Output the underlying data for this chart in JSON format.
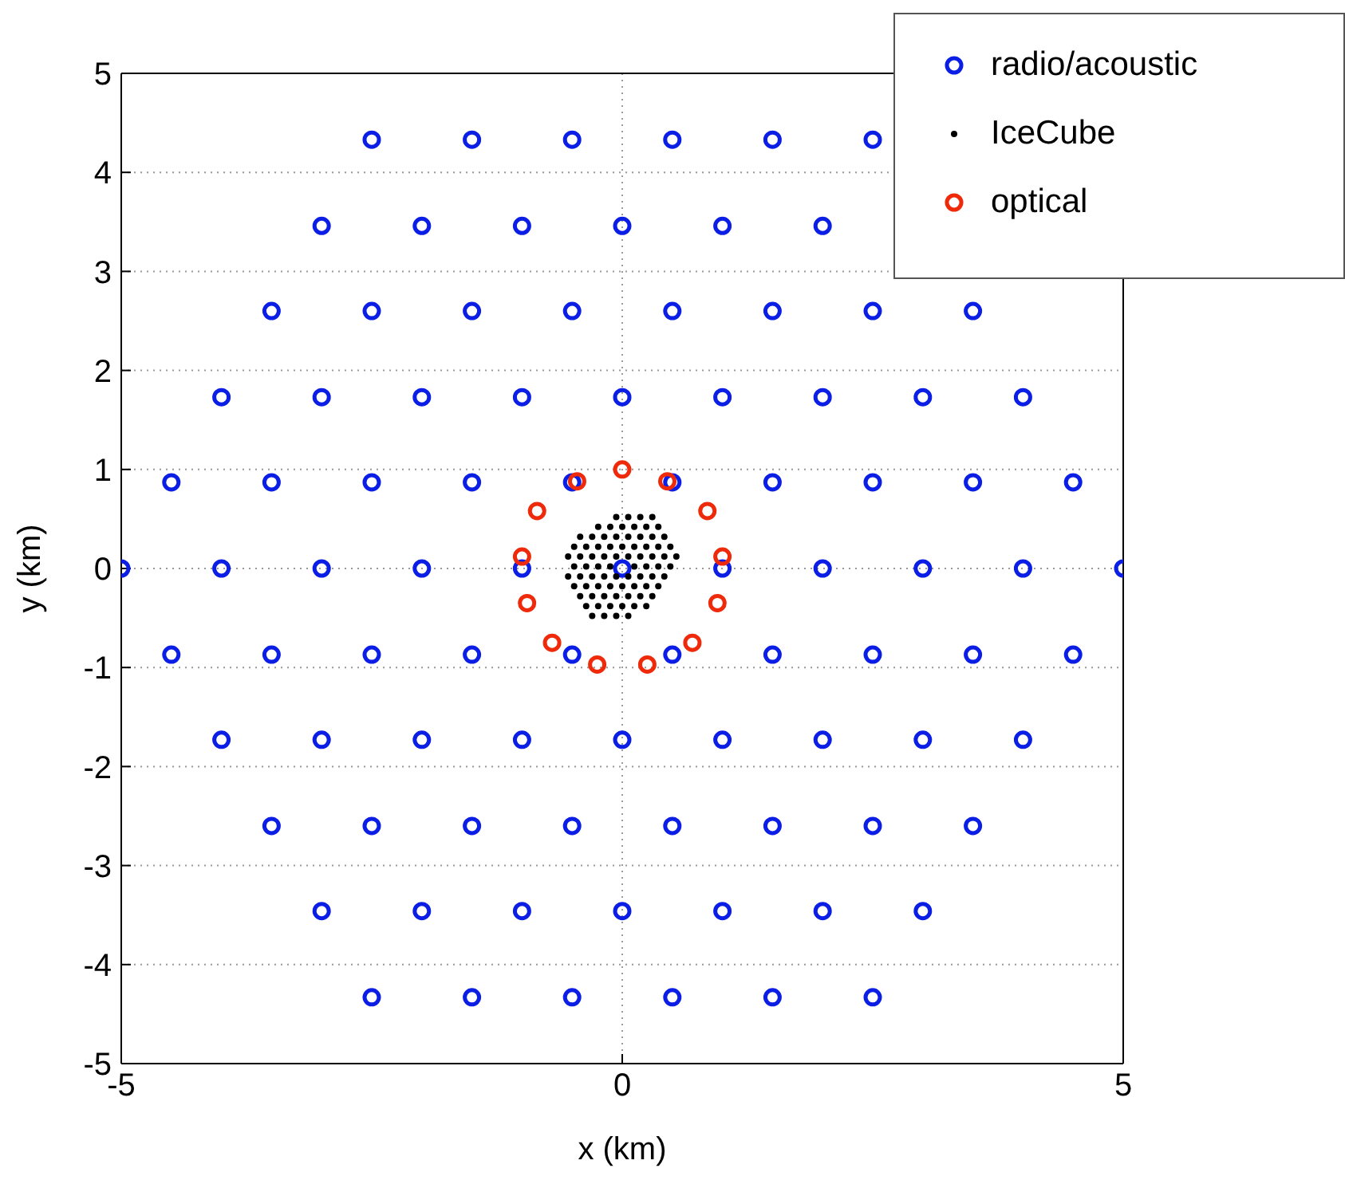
{
  "chart_data": {
    "type": "scatter",
    "xlabel": "x (km)",
    "ylabel": "y (km)",
    "xlim": [
      -5,
      5
    ],
    "ylim": [
      -5,
      5
    ],
    "xticks": [
      -5,
      0,
      5
    ],
    "yticks": [
      -5,
      -4,
      -3,
      -2,
      -1,
      0,
      1,
      2,
      3,
      4,
      5
    ],
    "grid": true,
    "legend": "top right",
    "marker": "circle",
    "series": [
      {
        "name": "radio/acoustic",
        "color": "#0a1ee6",
        "x": [
          -2.5,
          -1.5,
          -0.5,
          0.5,
          1.5,
          2.5,
          -3,
          -2,
          -1,
          0,
          1,
          2,
          -3.5,
          -2.5,
          -1.5,
          -0.5,
          0.5,
          1.5,
          2.5,
          3.5,
          -4,
          -3,
          -2,
          -1,
          0,
          1,
          2,
          3,
          4,
          -4.5,
          -3.5,
          -2.5,
          -1.5,
          -0.5,
          0.5,
          1.5,
          2.5,
          3.5,
          4.5,
          -5,
          -4,
          -3,
          -2,
          -1,
          0,
          1,
          2,
          3,
          4,
          5,
          -4.5,
          -3.5,
          -2.5,
          -1.5,
          -0.5,
          0.5,
          1.5,
          2.5,
          3.5,
          4.5,
          -4,
          -3,
          -2,
          -1,
          0,
          1,
          2,
          3,
          4,
          -3.5,
          -2.5,
          -1.5,
          -0.5,
          0.5,
          1.5,
          2.5,
          3.5,
          -3,
          -2,
          -1,
          0,
          1,
          2,
          3,
          -2.5,
          -1.5,
          -0.5,
          0.5,
          1.5,
          2.5
        ],
        "values": [
          4.33,
          4.33,
          4.33,
          4.33,
          4.33,
          4.33,
          3.46,
          3.46,
          3.46,
          3.46,
          3.46,
          3.46,
          2.6,
          2.6,
          2.6,
          2.6,
          2.6,
          2.6,
          2.6,
          2.6,
          1.73,
          1.73,
          1.73,
          1.73,
          1.73,
          1.73,
          1.73,
          1.73,
          1.73,
          0.87,
          0.87,
          0.87,
          0.87,
          0.87,
          0.87,
          0.87,
          0.87,
          0.87,
          0.87,
          0,
          0,
          0,
          0,
          0,
          0,
          0,
          0,
          0,
          0,
          0,
          -0.87,
          -0.87,
          -0.87,
          -0.87,
          -0.87,
          -0.87,
          -0.87,
          -0.87,
          -0.87,
          -0.87,
          -1.73,
          -1.73,
          -1.73,
          -1.73,
          -1.73,
          -1.73,
          -1.73,
          -1.73,
          -1.73,
          -2.6,
          -2.6,
          -2.6,
          -2.6,
          -2.6,
          -2.6,
          -2.6,
          -2.6,
          -3.46,
          -3.46,
          -3.46,
          -3.46,
          -3.46,
          -3.46,
          -3.46,
          -4.33,
          -4.33,
          -4.33,
          -4.33,
          -4.33,
          -4.33
        ]
      },
      {
        "name": "IceCube",
        "color": "#000000",
        "x": [
          -0.06,
          0.06,
          0.18,
          0.3,
          -0.24,
          -0.12,
          0,
          0.12,
          0.24,
          0.36,
          -0.42,
          -0.3,
          -0.18,
          -0.06,
          0.06,
          0.18,
          0.3,
          0.42,
          -0.48,
          -0.36,
          -0.24,
          -0.12,
          0,
          0.12,
          0.24,
          0.36,
          0.48,
          -0.54,
          -0.42,
          -0.3,
          -0.18,
          -0.06,
          0.06,
          0.18,
          0.3,
          0.42,
          0.54,
          -0.48,
          -0.36,
          -0.24,
          -0.12,
          0.12,
          0.24,
          0.36,
          0.48,
          -0.54,
          -0.42,
          -0.3,
          -0.18,
          -0.06,
          0.06,
          0.18,
          0.3,
          0.42,
          -0.48,
          -0.36,
          -0.24,
          -0.12,
          0,
          0.12,
          0.24,
          0.36,
          -0.42,
          -0.3,
          -0.18,
          -0.06,
          0.06,
          0.18,
          0.3,
          -0.36,
          -0.24,
          -0.12,
          0,
          0.12,
          0.24,
          -0.3,
          -0.18,
          -0.06,
          0.06
        ],
        "values": [
          0.52,
          0.52,
          0.52,
          0.52,
          0.42,
          0.42,
          0.42,
          0.42,
          0.42,
          0.42,
          0.32,
          0.32,
          0.32,
          0.32,
          0.32,
          0.32,
          0.32,
          0.32,
          0.22,
          0.22,
          0.22,
          0.22,
          0.22,
          0.22,
          0.22,
          0.22,
          0.22,
          0.12,
          0.12,
          0.12,
          0.12,
          0.12,
          0.12,
          0.12,
          0.12,
          0.12,
          0.12,
          0.02,
          0.02,
          0.02,
          0.02,
          0.02,
          0.02,
          0.02,
          0.02,
          -0.08,
          -0.08,
          -0.08,
          -0.08,
          -0.08,
          -0.08,
          -0.08,
          -0.08,
          -0.08,
          -0.18,
          -0.18,
          -0.18,
          -0.18,
          -0.18,
          -0.18,
          -0.18,
          -0.18,
          -0.28,
          -0.28,
          -0.28,
          -0.28,
          -0.28,
          -0.28,
          -0.28,
          -0.38,
          -0.38,
          -0.38,
          -0.38,
          -0.38,
          -0.38,
          -0.48,
          -0.48,
          -0.48,
          -0.48
        ]
      },
      {
        "name": "optical",
        "color": "#ee2a0a",
        "x": [
          0,
          -0.45,
          0.45,
          -0.85,
          0.85,
          -1,
          1,
          -0.95,
          0.95,
          -0.7,
          0.7,
          -0.25,
          0.25
        ],
        "values": [
          1,
          0.88,
          0.88,
          0.58,
          0.58,
          0.12,
          0.12,
          -0.35,
          -0.35,
          -0.75,
          -0.75,
          -0.97,
          -0.97
        ]
      }
    ]
  }
}
